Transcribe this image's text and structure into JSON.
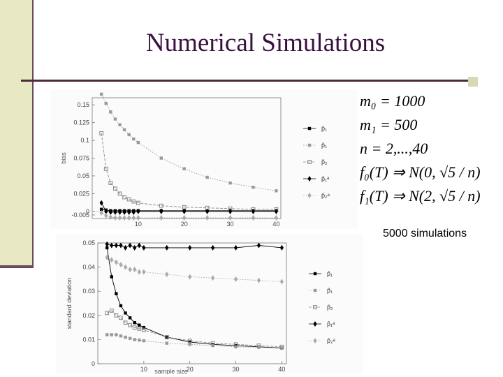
{
  "slide": {
    "title": "Numerical Simulations",
    "params": {
      "m0": "m₀ = 1000",
      "m1": "m₁ = 500",
      "n": "n = 2,...,40",
      "f0": "f₀(T) ⇒ N(0, √5 / n)",
      "f1": "f₁(T) ⇒ N(2, √5 / n)"
    },
    "simulations_note": "5000 simulations"
  },
  "chart_data": [
    {
      "type": "line",
      "title": "",
      "xlabel": "",
      "ylabel": "bias",
      "xlim": [
        0,
        41
      ],
      "ylim": [
        -0.01,
        0.16
      ],
      "yticks": [
        {
          "value": 0.15,
          "label": "0.15"
        },
        {
          "value": 0.125,
          "label": "0.125"
        },
        {
          "value": 0.1,
          "label": "0.1"
        },
        {
          "value": 0.075,
          "label": "0.075"
        },
        {
          "value": 0.05,
          "label": "0.05"
        },
        {
          "value": 0.025,
          "label": "0.025"
        },
        {
          "value": 0,
          "label": "0"
        },
        {
          "value": -0.005,
          "label": "-0.005"
        }
      ],
      "xticks": [
        {
          "value": 10,
          "label": "10"
        },
        {
          "value": 20,
          "label": "20"
        },
        {
          "value": 30,
          "label": "30"
        },
        {
          "value": 40,
          "label": "40"
        }
      ],
      "legend": [
        "p̂₁",
        "p̃₁",
        "p̃₂",
        "p̂₁ᵃ",
        "p̂₂ᵃ"
      ],
      "series": [
        {
          "name": "p̂₁",
          "marker": "square",
          "color": "#000000",
          "dash": "solid",
          "x": [
            2,
            3,
            4,
            5,
            6,
            7,
            8,
            9,
            10,
            15,
            20,
            25,
            30,
            35,
            40
          ],
          "y": [
            0.003,
            0.002,
            0.001,
            0.001,
            0.001,
            0.001,
            0.001,
            0.001,
            0.001,
            0.001,
            0.001,
            0.001,
            0.001,
            0.001,
            0.001
          ]
        },
        {
          "name": "p̃₁",
          "marker": "square",
          "color": "#999999",
          "dash": "dotted",
          "x": [
            2,
            3,
            4,
            5,
            6,
            7,
            8,
            9,
            10,
            15,
            20,
            25,
            30,
            35,
            40
          ],
          "y": [
            0.165,
            0.152,
            0.14,
            0.13,
            0.122,
            0.115,
            0.108,
            0.102,
            0.097,
            0.075,
            0.06,
            0.048,
            0.04,
            0.034,
            0.029
          ]
        },
        {
          "name": "p̃₂",
          "marker": "open-square",
          "color": "#888888",
          "dash": "dashed",
          "x": [
            2,
            3,
            4,
            5,
            6,
            7,
            8,
            9,
            10,
            15,
            20,
            25,
            30,
            35,
            40
          ],
          "y": [
            0.11,
            0.06,
            0.04,
            0.032,
            0.025,
            0.02,
            0.017,
            0.014,
            0.012,
            0.008,
            0.006,
            0.005,
            0.004,
            0.003,
            0.003
          ]
        },
        {
          "name": "p̂₁ᵃ",
          "marker": "diamond",
          "color": "#000000",
          "dash": "solid",
          "x": [
            2,
            3,
            4,
            5,
            6,
            7,
            8,
            9,
            10,
            15,
            20,
            25,
            30,
            35,
            40
          ],
          "y": [
            0.012,
            0.0,
            -0.001,
            -0.001,
            -0.001,
            -0.001,
            -0.001,
            -0.001,
            0.0,
            0.0,
            0.0,
            0.0,
            0.0,
            0.0,
            0.0
          ]
        },
        {
          "name": "p̂₂ᵃ",
          "marker": "diamond",
          "color": "#aaaaaa",
          "dash": "dotted",
          "x": [
            2,
            3,
            4,
            5,
            6,
            7,
            8,
            9,
            10,
            15,
            20,
            25,
            30,
            35,
            40
          ],
          "y": [
            -0.002,
            -0.006,
            -0.008,
            -0.009,
            -0.009,
            -0.009,
            -0.009,
            -0.009,
            -0.009,
            -0.009,
            -0.009,
            -0.009,
            -0.009,
            -0.009,
            -0.009
          ]
        }
      ]
    },
    {
      "type": "line",
      "title": "",
      "xlabel": "sample size",
      "ylabel": "standard deviation",
      "xlim": [
        0,
        41
      ],
      "ylim": [
        0,
        0.05
      ],
      "yticks": [
        {
          "value": 0.05,
          "label": "0.05"
        },
        {
          "value": 0.04,
          "label": "0.04"
        },
        {
          "value": 0.03,
          "label": "0.03"
        },
        {
          "value": 0.02,
          "label": "0.02"
        },
        {
          "value": 0.01,
          "label": "0.01"
        },
        {
          "value": 0,
          "label": "0"
        }
      ],
      "xticks": [
        {
          "value": 10,
          "label": "10"
        },
        {
          "value": 20,
          "label": "20"
        },
        {
          "value": 30,
          "label": "30"
        },
        {
          "value": 40,
          "label": "40"
        }
      ],
      "legend": [
        "p̂₁",
        "p̃₁",
        "p̃₂",
        "p̂₁ᵃ",
        "p̂₂ᵃ"
      ],
      "series": [
        {
          "name": "p̂₁",
          "marker": "square",
          "color": "#000000",
          "dash": "solid",
          "x": [
            2,
            3,
            4,
            5,
            6,
            7,
            8,
            9,
            10,
            15,
            20,
            25,
            30,
            35,
            40
          ],
          "y": [
            0.048,
            0.036,
            0.029,
            0.024,
            0.021,
            0.019,
            0.017,
            0.016,
            0.015,
            0.011,
            0.009,
            0.008,
            0.0075,
            0.007,
            0.0065
          ]
        },
        {
          "name": "p̃₁",
          "marker": "square",
          "color": "#999999",
          "dash": "dotted",
          "x": [
            2,
            3,
            4,
            5,
            6,
            7,
            8,
            9,
            10,
            15,
            20,
            25,
            30,
            35,
            40
          ],
          "y": [
            0.012,
            0.012,
            0.012,
            0.0115,
            0.011,
            0.0105,
            0.01,
            0.0098,
            0.0095,
            0.0085,
            0.008,
            0.0075,
            0.007,
            0.0068,
            0.0065
          ]
        },
        {
          "name": "p̃₂",
          "marker": "open-square",
          "color": "#888888",
          "dash": "dashed",
          "x": [
            2,
            3,
            4,
            5,
            6,
            7,
            8,
            9,
            10,
            15,
            20,
            25,
            30,
            35,
            40
          ],
          "y": [
            0.021,
            0.022,
            0.02,
            0.019,
            0.017,
            0.016,
            0.015,
            0.0145,
            0.014,
            0.011,
            0.0095,
            0.0085,
            0.008,
            0.0075,
            0.007
          ]
        },
        {
          "name": "p̂₁ᵃ",
          "marker": "diamond",
          "color": "#000000",
          "dash": "solid",
          "x": [
            2,
            3,
            4,
            5,
            6,
            7,
            8,
            9,
            10,
            15,
            20,
            25,
            30,
            35,
            40
          ],
          "y": [
            0.0495,
            0.049,
            0.049,
            0.049,
            0.048,
            0.049,
            0.048,
            0.049,
            0.048,
            0.048,
            0.048,
            0.048,
            0.048,
            0.049,
            0.048
          ]
        },
        {
          "name": "p̂₂ᵃ",
          "marker": "diamond",
          "color": "#aaaaaa",
          "dash": "dotted",
          "x": [
            2,
            3,
            4,
            5,
            6,
            7,
            8,
            9,
            10,
            15,
            20,
            25,
            30,
            35,
            40
          ],
          "y": [
            0.044,
            0.043,
            0.042,
            0.041,
            0.04,
            0.039,
            0.039,
            0.038,
            0.038,
            0.037,
            0.036,
            0.0355,
            0.035,
            0.0345,
            0.034
          ]
        }
      ]
    }
  ]
}
